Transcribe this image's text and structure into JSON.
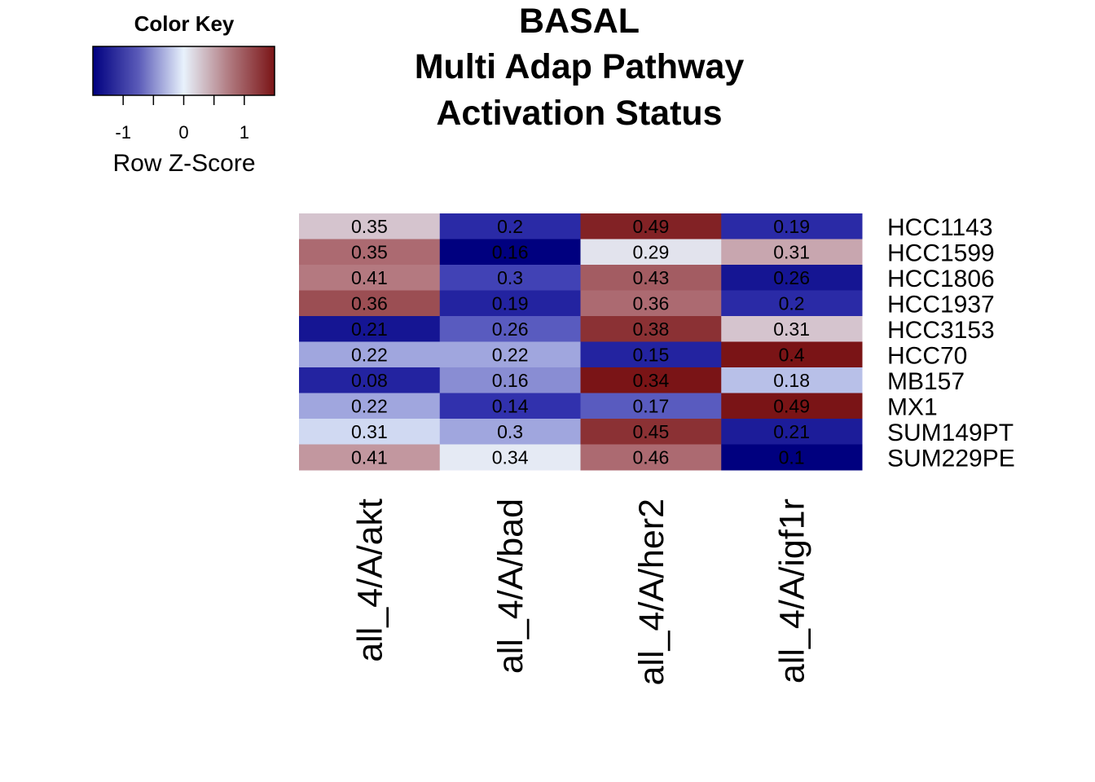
{
  "chart_data": {
    "type": "heatmap",
    "title_lines": [
      "BASAL",
      "Multi Adap Pathway",
      "Activation Status"
    ],
    "rows": [
      "HCC1143",
      "HCC1599",
      "HCC1806",
      "HCC1937",
      "HCC3153",
      "HCC70",
      "MB157",
      "MX1",
      "SUM149PT",
      "SUM229PE"
    ],
    "columns": [
      "all_4/A/akt",
      "all_4/A/bad",
      "all_4/A/her2",
      "all_4/A/igf1r"
    ],
    "cell_labels": [
      [
        "0.35",
        "0.2",
        "0.49",
        "0.19"
      ],
      [
        "0.35",
        "0.16",
        "0.29",
        "0.31"
      ],
      [
        "0.41",
        "0.3",
        "0.43",
        "0.26"
      ],
      [
        "0.36",
        "0.19",
        "0.36",
        "0.2"
      ],
      [
        "0.21",
        "0.26",
        "0.38",
        "0.31"
      ],
      [
        "0.22",
        "0.22",
        "0.15",
        "0.4"
      ],
      [
        "0.08",
        "0.16",
        "0.34",
        "0.18"
      ],
      [
        "0.22",
        "0.14",
        "0.17",
        "0.49"
      ],
      [
        "0.31",
        "0.3",
        "0.45",
        "0.21"
      ],
      [
        "0.41",
        "0.34",
        "0.46",
        "0.1"
      ]
    ],
    "row_z_scores": [
      [
        0.3,
        -0.9,
        1.4,
        -0.9
      ],
      [
        0.9,
        -1.5,
        0.1,
        0.5
      ],
      [
        0.8,
        -0.7,
        1.0,
        -1.2
      ],
      [
        1.1,
        -1.0,
        0.9,
        -0.9
      ],
      [
        -1.2,
        -0.6,
        1.3,
        0.3
      ],
      [
        -0.3,
        -0.3,
        -1.0,
        1.5
      ],
      [
        -1.0,
        -0.4,
        1.5,
        -0.2
      ],
      [
        -0.3,
        -0.8,
        -0.6,
        1.5
      ],
      [
        -0.1,
        -0.3,
        1.3,
        -1.1
      ],
      [
        0.6,
        0.05,
        0.9,
        -1.5
      ]
    ],
    "color_key": {
      "title": "Color Key",
      "xlabel": "Row Z-Score",
      "range": [
        -1.5,
        1.5
      ],
      "ticks": [
        -1,
        0,
        1
      ],
      "tick_labels": [
        "-1",
        "0",
        "1"
      ],
      "colors": {
        "low": "#00007f",
        "mid_low": "#3535b0",
        "mid": "#e8f2fc",
        "mid_high": "#b88088",
        "high": "#7a1416"
      }
    }
  }
}
